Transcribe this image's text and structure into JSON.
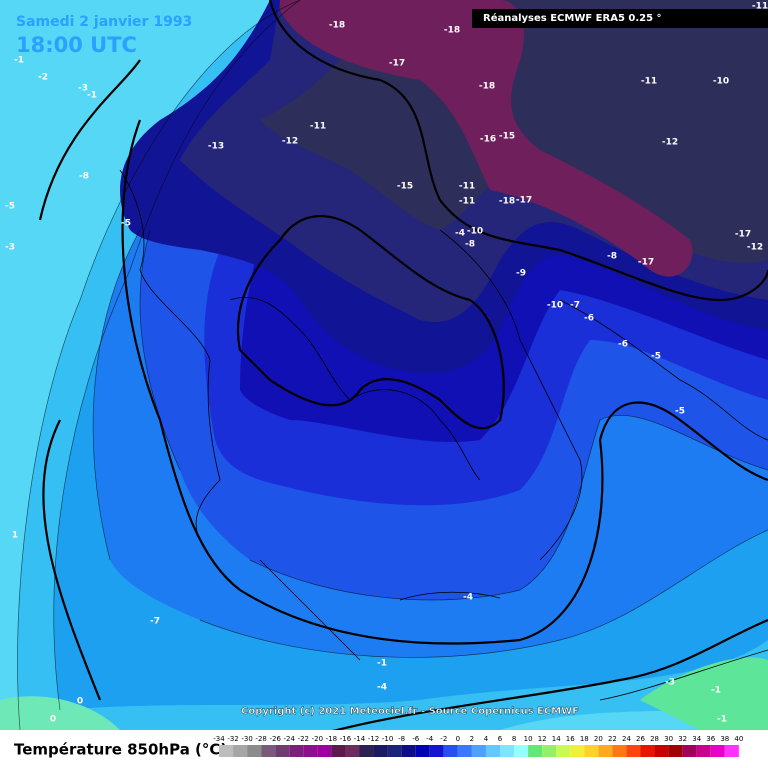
{
  "header": {
    "date": "Samedi 2 janvier 1993",
    "time": "18:00 UTC",
    "source": "Réanalyses ECMWF ERA5 0.25 °"
  },
  "copyright": "Copyright (c) 2021 Meteociel.fr - Source Copernicus ECMWF",
  "contour_labels": [
    -11,
    -18,
    -18,
    -17,
    -18,
    -11,
    -10,
    -11,
    -12,
    -13,
    -16,
    -15,
    -12,
    -15,
    -11,
    -11,
    -18,
    -17,
    -8,
    -5,
    -5,
    -3,
    -1,
    -2,
    -3,
    -4,
    -10,
    -8,
    -9,
    -8,
    -17,
    -17,
    -12,
    -10,
    -7,
    -6,
    -6,
    -5,
    -5,
    -4,
    -7,
    -1,
    -4,
    -3,
    -1,
    0,
    0,
    -1,
    1,
    -1
  ],
  "legend": {
    "title": "Température 850hPa (°C)",
    "ticks": [
      -34,
      -32,
      -30,
      -28,
      -26,
      -24,
      -22,
      -20,
      -18,
      -16,
      -14,
      -12,
      -10,
      -8,
      -6,
      -4,
      -2,
      0,
      2,
      4,
      6,
      8,
      10,
      12,
      14,
      16,
      18,
      20,
      22,
      24,
      26,
      28,
      30,
      32,
      34,
      36,
      38,
      40
    ],
    "colors": [
      "#bdbdbd",
      "#a6a6a6",
      "#8c8c8c",
      "#7a5a7a",
      "#6e3c6e",
      "#7a1f7a",
      "#8c0f8c",
      "#a000a0",
      "#5c1a4a",
      "#6b2d5b",
      "#2e2050",
      "#1a1a5e",
      "#1a237a",
      "#0d0d8c",
      "#0000b4",
      "#1414d2",
      "#2850f0",
      "#3c78ff",
      "#50a0ff",
      "#64c8ff",
      "#7de6ff",
      "#96ffff",
      "#64e678",
      "#96f064",
      "#c8fa50",
      "#f0f03c",
      "#ffd228",
      "#ffaa1e",
      "#ff7814",
      "#ff460a",
      "#e61400",
      "#c80000",
      "#a00000",
      "#a0005a",
      "#c8008c",
      "#e600c8",
      "#ff32ff"
    ]
  }
}
